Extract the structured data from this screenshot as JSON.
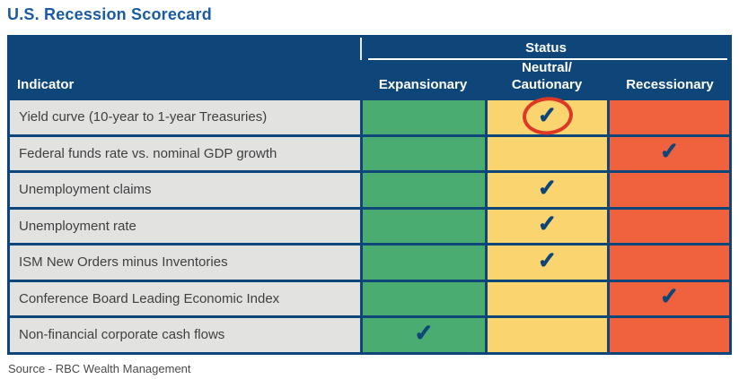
{
  "page": {
    "title": "U.S. Recession Scorecard",
    "source": "Source - RBC Wealth Management"
  },
  "table": {
    "status_group_header": "Status",
    "indicator_header": "Indicator",
    "column_labels": {
      "expansionary": "Expansionary",
      "neutral": "Neutral/\nCautionary",
      "recessionary": "Recessionary"
    }
  },
  "icons": {
    "check": "✓"
  },
  "colors": {
    "navy": "#0E4679",
    "title_blue": "#1A5CA3",
    "expansionary_green": "#4AAC71",
    "neutral_yellow": "#FAD46F",
    "recessionary_orange": "#F0613E",
    "indicator_gray": "#E2E2E1",
    "indicator_text": "#404040",
    "highlight_red": "#DD3826",
    "source_text": "#4A4A4A"
  },
  "chart_data": {
    "type": "table",
    "title": "U.S. Recession Scorecard",
    "columns": [
      "Expansionary",
      "Neutral/Cautionary",
      "Recessionary"
    ],
    "rows": [
      {
        "indicator": "Yield curve (10-year to 1-year Treasuries)",
        "status": "Neutral/Cautionary",
        "circled": true
      },
      {
        "indicator": "Federal funds rate vs. nominal GDP growth",
        "status": "Recessionary",
        "circled": false
      },
      {
        "indicator": "Unemployment claims",
        "status": "Neutral/Cautionary",
        "circled": false
      },
      {
        "indicator": "Unemployment rate",
        "status": "Neutral/Cautionary",
        "circled": false
      },
      {
        "indicator": "ISM New Orders minus Inventories",
        "status": "Neutral/Cautionary",
        "circled": false
      },
      {
        "indicator": "Conference Board Leading Economic Index",
        "status": "Recessionary",
        "circled": false
      },
      {
        "indicator": "Non-financial corporate cash flows",
        "status": "Expansionary",
        "circled": false
      }
    ],
    "source": "Source - RBC Wealth Management",
    "status_colors": {
      "Expansionary": "#4AAC71",
      "Neutral/Cautionary": "#FAD46F",
      "Recessionary": "#F0613E"
    },
    "legend_position": "top",
    "grid": true
  }
}
